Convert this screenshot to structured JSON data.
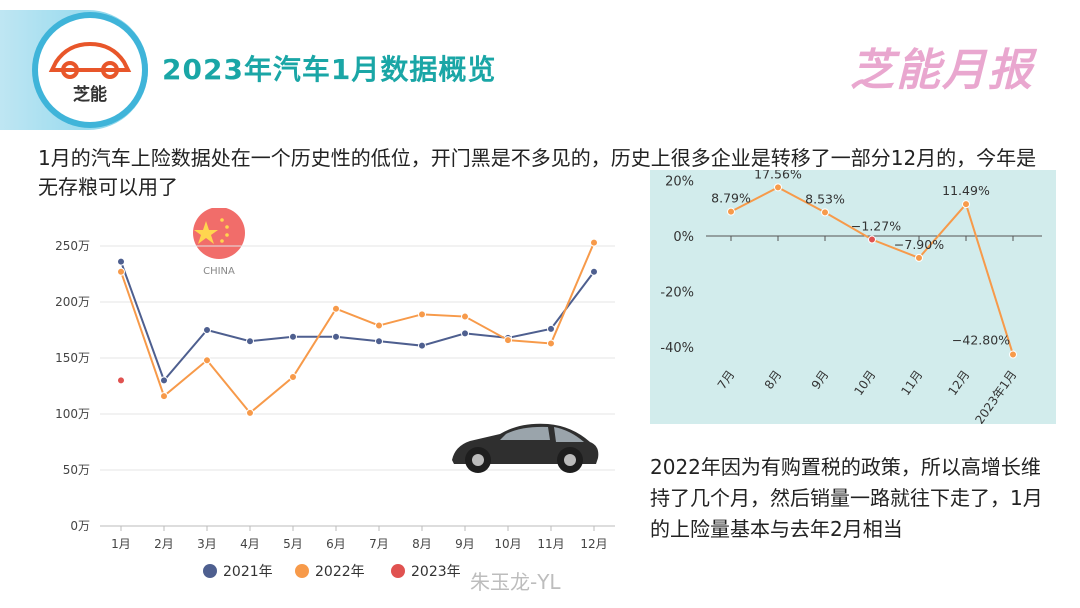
{
  "header": {
    "logo_text": "芝能",
    "title": "2023年汽车1月数据概览",
    "brand": "芝能月报"
  },
  "paragraph": "1月的汽车上险数据处在一个历史性的低位，开门黑是不多见的，历史上很多企业是转移了一部分12月的，今年是无存粮可以用了",
  "note": "2022年因为有购置税的政策，所以高增长维持了几个月，然后销量一路就往下走了，1月的上险量基本与去年2月相当",
  "watermark": "朱玉龙-YL",
  "flag_label": "CHINA",
  "colors": {
    "s2021": "#4e5f8f",
    "s2022": "#f79a4a",
    "s2023": "#e05250",
    "title": "#1aa6a6",
    "brand": "#e9a7cf",
    "panel": "#d2ecec"
  },
  "chart_data": [
    {
      "type": "line",
      "categories": [
        "1月",
        "2月",
        "3月",
        "4月",
        "5月",
        "6月",
        "7月",
        "8月",
        "9月",
        "10月",
        "11月",
        "12月"
      ],
      "y_tick_labels": [
        "0万",
        "50万",
        "100万",
        "150万",
        "200万",
        "250万"
      ],
      "ylim": [
        0,
        250
      ],
      "grid": true,
      "legend": "bottom",
      "series": [
        {
          "name": "2021年",
          "values": [
            236,
            130,
            175,
            165,
            169,
            169,
            165,
            161,
            172,
            168,
            176,
            227
          ]
        },
        {
          "name": "2022年",
          "values": [
            227,
            116,
            148,
            101,
            133,
            194,
            179,
            189,
            187,
            166,
            163,
            253
          ]
        },
        {
          "name": "2023年",
          "values": [
            130,
            null,
            null,
            null,
            null,
            null,
            null,
            null,
            null,
            null,
            null,
            null
          ]
        }
      ]
    },
    {
      "type": "line",
      "categories": [
        "7月",
        "8月",
        "9月",
        "10月",
        "11月",
        "12月",
        "2023年1月"
      ],
      "y_tick_labels": [
        "20%",
        "0%",
        "-20%",
        "-40%"
      ],
      "ylim": [
        -50,
        20
      ],
      "grid": false,
      "values": [
        8.79,
        17.56,
        8.53,
        -1.27,
        -7.9,
        11.49,
        -42.8
      ],
      "value_labels": [
        "8.79%",
        "17.56%",
        "8.53%",
        "−1.27%",
        "−7.90%",
        "11.49%",
        "−42.80%"
      ]
    }
  ]
}
